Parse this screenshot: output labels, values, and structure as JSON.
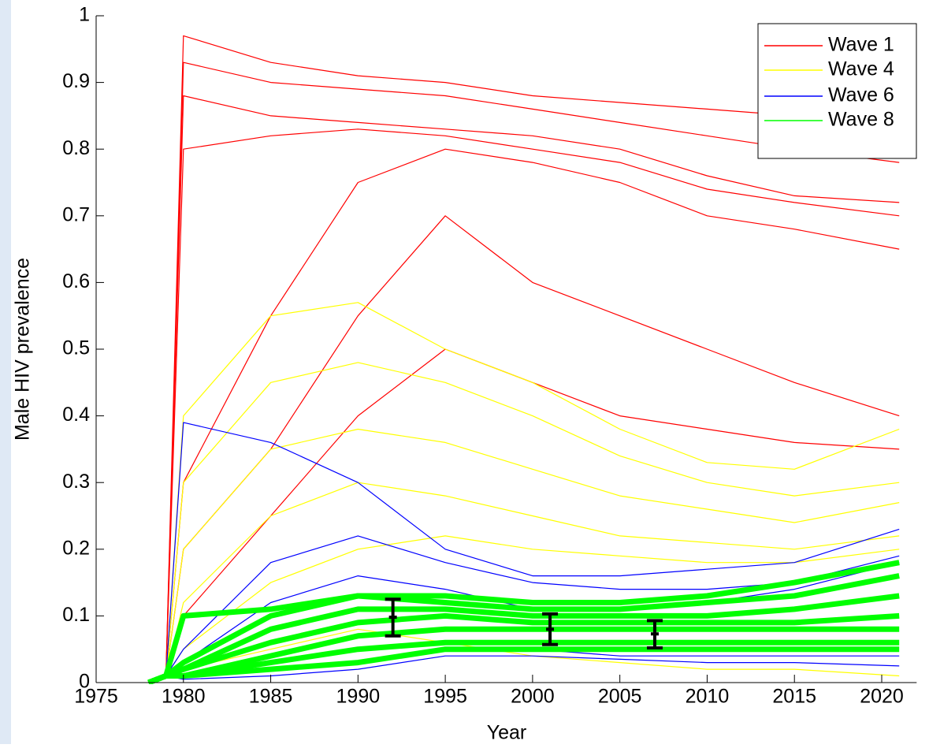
{
  "chart_data": {
    "type": "line",
    "xlabel": "Year",
    "ylabel": "Male HIV prevalence",
    "xlim": [
      1975,
      2022
    ],
    "ylim": [
      0,
      1
    ],
    "xticks": [
      1975,
      1980,
      1985,
      1990,
      1995,
      2000,
      2005,
      2010,
      2015,
      2020
    ],
    "yticks": [
      0,
      0.1,
      0.2,
      0.3,
      0.4,
      0.5,
      0.6,
      0.7,
      0.8,
      0.9,
      1
    ],
    "legend": "upper right",
    "x": [
      1978,
      1979,
      1980,
      1985,
      1990,
      1995,
      2000,
      2005,
      2010,
      2015,
      2021
    ],
    "series": [
      {
        "name": "Wave 1",
        "color": "#ff0000",
        "lines": [
          [
            0,
            0.01,
            0.97,
            0.93,
            0.91,
            0.9,
            0.88,
            0.87,
            0.86,
            0.85,
            0.83
          ],
          [
            0,
            0.01,
            0.93,
            0.9,
            0.89,
            0.88,
            0.86,
            0.84,
            0.82,
            0.8,
            0.78
          ],
          [
            0,
            0.01,
            0.88,
            0.85,
            0.84,
            0.83,
            0.82,
            0.8,
            0.76,
            0.73,
            0.72
          ],
          [
            0,
            0.01,
            0.8,
            0.82,
            0.83,
            0.82,
            0.8,
            0.78,
            0.74,
            0.72,
            0.7
          ],
          [
            0,
            0.01,
            0.3,
            0.55,
            0.75,
            0.8,
            0.78,
            0.75,
            0.7,
            0.68,
            0.65
          ],
          [
            0,
            0.01,
            0.2,
            0.35,
            0.55,
            0.7,
            0.6,
            0.55,
            0.5,
            0.45,
            0.4
          ],
          [
            0,
            0.01,
            0.1,
            0.25,
            0.4,
            0.5,
            0.45,
            0.4,
            0.38,
            0.36,
            0.35
          ]
        ]
      },
      {
        "name": "Wave 4",
        "color": "#ffff00",
        "lines": [
          [
            0,
            0.01,
            0.4,
            0.55,
            0.57,
            0.5,
            0.45,
            0.38,
            0.33,
            0.32,
            0.38
          ],
          [
            0,
            0.01,
            0.3,
            0.45,
            0.48,
            0.45,
            0.4,
            0.34,
            0.3,
            0.28,
            0.3
          ],
          [
            0,
            0.01,
            0.2,
            0.35,
            0.38,
            0.36,
            0.32,
            0.28,
            0.26,
            0.24,
            0.27
          ],
          [
            0,
            0.01,
            0.12,
            0.25,
            0.3,
            0.28,
            0.25,
            0.22,
            0.21,
            0.2,
            0.22
          ],
          [
            0,
            0.01,
            0.05,
            0.15,
            0.2,
            0.22,
            0.2,
            0.19,
            0.18,
            0.18,
            0.2
          ],
          [
            0,
            0.01,
            0.02,
            0.05,
            0.08,
            0.06,
            0.04,
            0.03,
            0.02,
            0.02,
            0.01
          ]
        ]
      },
      {
        "name": "Wave 6",
        "color": "#0000ff",
        "lines": [
          [
            0,
            0.01,
            0.39,
            0.36,
            0.3,
            0.2,
            0.16,
            0.16,
            0.17,
            0.18,
            0.23
          ],
          [
            0,
            0.01,
            0.05,
            0.18,
            0.22,
            0.18,
            0.15,
            0.14,
            0.14,
            0.15,
            0.19
          ],
          [
            0,
            0.01,
            0.03,
            0.12,
            0.16,
            0.14,
            0.11,
            0.11,
            0.12,
            0.14,
            0.18
          ],
          [
            0,
            0.01,
            0.01,
            0.02,
            0.03,
            0.05,
            0.05,
            0.04,
            0.04,
            0.04,
            0.04
          ],
          [
            0,
            0.01,
            0.005,
            0.01,
            0.02,
            0.04,
            0.04,
            0.035,
            0.03,
            0.03,
            0.025
          ]
        ]
      },
      {
        "name": "Wave 8",
        "color": "#00ff00",
        "lines": [
          [
            0,
            0.01,
            0.1,
            0.11,
            0.13,
            0.13,
            0.12,
            0.12,
            0.13,
            0.15,
            0.18
          ],
          [
            0,
            0.01,
            0.03,
            0.1,
            0.13,
            0.12,
            0.11,
            0.11,
            0.12,
            0.13,
            0.16
          ],
          [
            0,
            0.01,
            0.02,
            0.08,
            0.11,
            0.11,
            0.1,
            0.1,
            0.1,
            0.11,
            0.13
          ],
          [
            0,
            0.01,
            0.02,
            0.06,
            0.09,
            0.1,
            0.09,
            0.09,
            0.09,
            0.09,
            0.1
          ],
          [
            0,
            0.01,
            0.01,
            0.04,
            0.07,
            0.08,
            0.08,
            0.08,
            0.08,
            0.08,
            0.08
          ],
          [
            0,
            0.01,
            0.01,
            0.03,
            0.05,
            0.06,
            0.06,
            0.06,
            0.06,
            0.06,
            0.06
          ],
          [
            0,
            0.01,
            0.01,
            0.02,
            0.03,
            0.05,
            0.05,
            0.05,
            0.05,
            0.05,
            0.05
          ]
        ]
      }
    ],
    "error_bars": {
      "color": "#000000",
      "x": [
        1992,
        2001,
        2007
      ],
      "values": [
        0.098,
        0.08,
        0.073
      ],
      "lower": [
        0.07,
        0.057,
        0.052
      ],
      "upper": [
        0.125,
        0.103,
        0.093
      ]
    }
  }
}
